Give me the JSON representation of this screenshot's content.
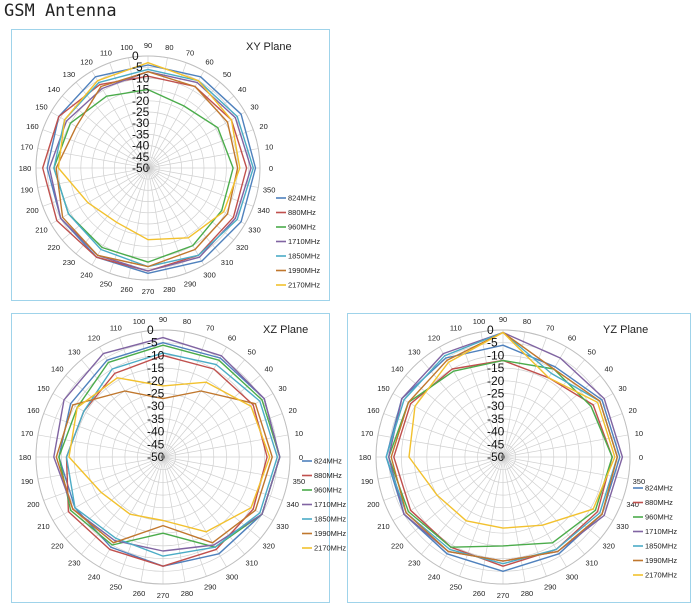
{
  "document_title": "GSM Antenna",
  "chart_data": [
    {
      "type": "polar-line",
      "title": "XY Plane",
      "radial_ticks": [
        "0",
        "-5",
        "-10",
        "-15",
        "-20",
        "-25",
        "-30",
        "-35",
        "-40",
        "-45",
        "-50"
      ],
      "rlim": [
        -50,
        0
      ],
      "angle_ticks": [
        "0",
        "10",
        "20",
        "30",
        "40",
        "50",
        "60",
        "70",
        "80",
        "90",
        "100",
        "110",
        "120",
        "130",
        "140",
        "150",
        "160",
        "170",
        "180",
        "190",
        "200",
        "210",
        "220",
        "230",
        "240",
        "250",
        "260",
        "270",
        "280",
        "290",
        "300",
        "310",
        "320",
        "330",
        "340",
        "350"
      ],
      "theta": [
        0,
        30,
        60,
        90,
        120,
        150,
        180,
        210,
        240,
        270,
        300,
        330
      ],
      "legend": "right",
      "grid": true,
      "series": [
        {
          "name": "824MHz",
          "color": "#4f81bd",
          "values": [
            -2,
            -2,
            -3,
            -4,
            -3,
            -4,
            -5,
            -5,
            -4,
            -3,
            -2,
            -2
          ]
        },
        {
          "name": "880MHz",
          "color": "#c0504d",
          "values": [
            -6,
            -7,
            -8,
            -9,
            -7,
            -4,
            -3,
            -3,
            -4,
            -4,
            -5,
            -6
          ]
        },
        {
          "name": "960MHz",
          "color": "#4bac4b",
          "values": [
            -12,
            -14,
            -18,
            -15,
            -13,
            -10,
            -8,
            -9,
            -9,
            -8,
            -10,
            -12
          ]
        },
        {
          "name": "1710MHz",
          "color": "#8064a2",
          "values": [
            -4,
            -5,
            -6,
            -7,
            -9,
            -8,
            -6,
            -5,
            -5,
            -4,
            -4,
            -5
          ]
        },
        {
          "name": "1850MHz",
          "color": "#4bacc6",
          "values": [
            -3,
            -4,
            -5,
            -6,
            -6,
            -7,
            -8,
            -9,
            -8,
            -6,
            -5,
            -4
          ]
        },
        {
          "name": "1990MHz",
          "color": "#c0772d",
          "values": [
            -10,
            -9,
            -8,
            -7,
            -8,
            -13,
            -9,
            -6,
            -5,
            -6,
            -8,
            -9
          ]
        },
        {
          "name": "2170MHz",
          "color": "#f2c12e",
          "values": [
            -9,
            -7,
            -5,
            -3,
            -5,
            -7,
            -10,
            -19,
            -22,
            -18,
            -14,
            -11
          ]
        }
      ]
    },
    {
      "type": "polar-line",
      "title": "XZ Plane",
      "radial_ticks": [
        "0",
        "-5",
        "-10",
        "-15",
        "-20",
        "-25",
        "-30",
        "-35",
        "-40",
        "-45",
        "-50"
      ],
      "rlim": [
        -50,
        0
      ],
      "angle_ticks": [
        "0",
        "10",
        "20",
        "30",
        "40",
        "50",
        "60",
        "70",
        "80",
        "90",
        "100",
        "110",
        "120",
        "130",
        "140",
        "150",
        "160",
        "170",
        "180",
        "190",
        "200",
        "210",
        "220",
        "230",
        "240",
        "250",
        "260",
        "270",
        "280",
        "290",
        "300",
        "310",
        "320",
        "330",
        "340",
        "350"
      ],
      "theta": [
        0,
        30,
        60,
        90,
        120,
        150,
        180,
        210,
        240,
        270,
        300,
        330
      ],
      "legend": "right",
      "grid": true,
      "series": [
        {
          "name": "824MHz",
          "color": "#4f81bd",
          "values": [
            -4,
            -4,
            -5,
            -5,
            -6,
            -8,
            -9,
            -10,
            -9,
            -7,
            -6,
            -5
          ]
        },
        {
          "name": "880MHz",
          "color": "#c0504d",
          "values": [
            -9,
            -9,
            -10,
            -10,
            -12,
            -14,
            -12,
            -7,
            -8,
            -7,
            -8,
            -9
          ]
        },
        {
          "name": "960MHz",
          "color": "#4bac4b",
          "values": [
            -4,
            -5,
            -6,
            -6,
            -7,
            -11,
            -9,
            -8,
            -10,
            -20,
            -9,
            -5
          ]
        },
        {
          "name": "1710MHz",
          "color": "#8064a2",
          "values": [
            -4,
            -4,
            -4,
            -3,
            -3,
            -5,
            -7,
            -9,
            -12,
            -13,
            -10,
            -5
          ]
        },
        {
          "name": "1850MHz",
          "color": "#4bacc6",
          "values": [
            -5,
            -6,
            -8,
            -9,
            -10,
            -14,
            -12,
            -10,
            -13,
            -11,
            -9,
            -6
          ]
        },
        {
          "name": "1990MHz",
          "color": "#c0772d",
          "values": [
            -7,
            -8,
            -20,
            -27,
            -20,
            -9,
            -8,
            -9,
            -11,
            -23,
            -11,
            -8
          ]
        },
        {
          "name": "2170MHz",
          "color": "#f2c12e",
          "values": [
            -8,
            -10,
            -16,
            -22,
            -14,
            -11,
            -13,
            -22,
            -24,
            -25,
            -16,
            -10
          ]
        }
      ]
    },
    {
      "type": "polar-line",
      "title": "YZ Plane",
      "radial_ticks": [
        "0",
        "-5",
        "-10",
        "-15",
        "-20",
        "-25",
        "-30",
        "-35",
        "-40",
        "-45",
        "-50"
      ],
      "rlim": [
        -50,
        0
      ],
      "angle_ticks": [
        "0",
        "10",
        "20",
        "30",
        "40",
        "50",
        "60",
        "70",
        "80",
        "90",
        "100",
        "110",
        "120",
        "130",
        "140",
        "150",
        "160",
        "170",
        "180",
        "190",
        "200",
        "210",
        "220",
        "230",
        "240",
        "250",
        "260",
        "270",
        "280",
        "290",
        "300",
        "310",
        "320",
        "330",
        "340",
        "350"
      ],
      "theta": [
        0,
        30,
        60,
        90,
        120,
        150,
        180,
        210,
        240,
        270,
        300,
        330
      ],
      "legend": "right",
      "grid": true,
      "series": [
        {
          "name": "824MHz",
          "color": "#4f81bd",
          "values": [
            -4,
            -5,
            -9,
            -6,
            -5,
            -4,
            -4,
            -5,
            -6,
            -5,
            -6,
            -5
          ]
        },
        {
          "name": "880MHz",
          "color": "#c0504d",
          "values": [
            -7,
            -9,
            -14,
            -12,
            -10,
            -8,
            -7,
            -8,
            -9,
            -7,
            -8,
            -7
          ]
        },
        {
          "name": "960MHz",
          "color": "#4bac4b",
          "values": [
            -7,
            -10,
            -10,
            -12,
            -11,
            -7,
            -5,
            -7,
            -9,
            -15,
            -11,
            -8
          ]
        },
        {
          "name": "1710MHz",
          "color": "#8064a2",
          "values": [
            -3,
            -4,
            -5,
            -1,
            -3,
            -4,
            -5,
            -5,
            -7,
            -9,
            -7,
            -4
          ]
        },
        {
          "name": "1850MHz",
          "color": "#4bacc6",
          "values": [
            -5,
            -6,
            -12,
            -1,
            -4,
            -5,
            -4,
            -6,
            -8,
            -8,
            -8,
            -6
          ]
        },
        {
          "name": "1990MHz",
          "color": "#c0772d",
          "values": [
            -5,
            -6,
            -10,
            -1,
            -6,
            -7,
            -6,
            -6,
            -7,
            -9,
            -7,
            -5
          ]
        },
        {
          "name": "2170MHz",
          "color": "#f2c12e",
          "values": [
            -6,
            -7,
            -14,
            -1,
            -7,
            -10,
            -13,
            -20,
            -21,
            -22,
            -19,
            -9
          ]
        }
      ]
    }
  ]
}
